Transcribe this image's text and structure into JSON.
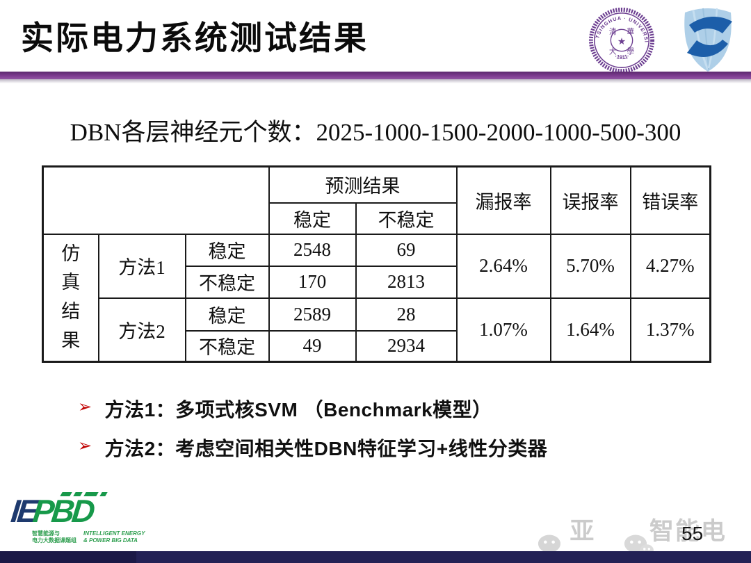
{
  "slide": {
    "title": "实际电力系统测试结果",
    "page_number": "55"
  },
  "subtitle": "DBN各层神经元个数：2025-1000-1500-2000-1000-500-300",
  "logos": {
    "tsinghua": {
      "ring_text": "TSINGHUA · UNIVERSITY",
      "year_text": "·1911·",
      "seal_chars": "清華大學",
      "color": "#6d3f91"
    },
    "shield": {
      "color_light": "#aecfe8",
      "color_dark": "#1c5ea9"
    }
  },
  "icons": {
    "bullet_arrow": "➢",
    "star": "★"
  },
  "table": {
    "headers": {
      "prediction": "预测结果",
      "stable": "稳定",
      "unstable": "不稳定",
      "miss_rate": "漏报率",
      "false_rate": "误报率",
      "error_rate": "错误率"
    },
    "row_group_label": "仿真结果",
    "rows": [
      {
        "method": "方法1",
        "r1_label": "稳定",
        "r1_stable": "2548",
        "r1_unstable": "69",
        "r2_label": "不稳定",
        "r2_stable": "170",
        "r2_unstable": "2813",
        "miss": "2.64%",
        "false": "5.70%",
        "error": "4.27%"
      },
      {
        "method": "方法2",
        "r1_label": "稳定",
        "r1_stable": "2589",
        "r1_unstable": "28",
        "r2_label": "不稳定",
        "r2_stable": "49",
        "r2_unstable": "2934",
        "miss": "1.07%",
        "false": "1.64%",
        "error": "1.37%"
      }
    ]
  },
  "bullets": [
    {
      "text": "方法1：多项式核SVM （Benchmark模型）"
    },
    {
      "text": "方法2：考虑空间相关性DBN特征学习+线性分类器"
    }
  ],
  "footer": {
    "iepbd": {
      "mark_ie": "IE",
      "mark_pbd": "PBD",
      "cn_line1": "智慧能源与",
      "cn_line2": "电力大数据课题组",
      "en_line1": "INTELLIGENT ENERGY",
      "en_line2": "& POWER BIG DATA"
    },
    "watermark": {
      "text_left": "亚洲",
      "text_right": "智能电网"
    }
  },
  "colors": {
    "accent_bar_purple": "#7d3c90",
    "bottom_bar_navy": "#232155",
    "value_red": "#c0392b",
    "value_blue": "#283593",
    "logo_green": "#17994a",
    "logo_navy": "#1e3a6e",
    "watermark_gray": "#cbcbcb"
  }
}
